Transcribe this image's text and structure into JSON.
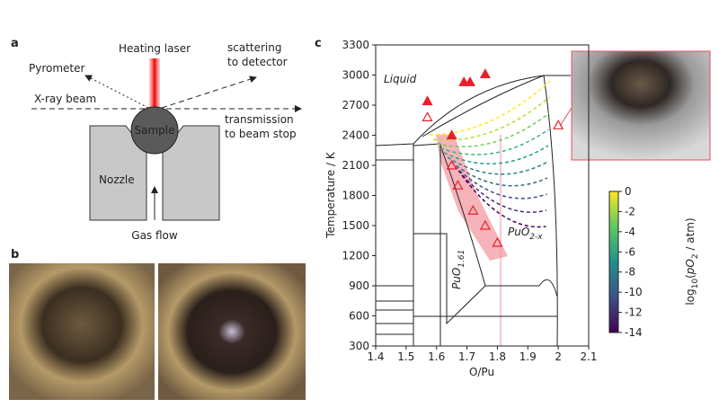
{
  "panel_a": {
    "label": "a",
    "heating_laser": "Heating laser",
    "pyrometer": "Pyrometer",
    "scattering": [
      "scattering",
      "to detector"
    ],
    "xray": "X-ray beam",
    "transmission": [
      "transmission",
      "to beam stop"
    ],
    "sample": "Sample",
    "nozzle": "Nozzle",
    "gas_flow": "Gas flow"
  },
  "panel_b": {
    "label": "b"
  },
  "panel_c": {
    "label": "c"
  },
  "chart_data": {
    "type": "scatter",
    "xlabel": "O/Pu",
    "ylabel": "Temperature / K",
    "xlim": [
      1.4,
      2.1
    ],
    "xticks": [
      1.4,
      1.5,
      1.6,
      1.7,
      1.8,
      1.9,
      2.0,
      2.1
    ],
    "ylim": [
      300,
      3300
    ],
    "yticks": [
      300,
      600,
      900,
      1200,
      1500,
      1800,
      2100,
      2400,
      2700,
      3000,
      3300
    ],
    "series": [
      {
        "color": "#e8202a",
        "marker": "filled",
        "x": [
          1.57,
          1.69,
          1.71,
          1.76,
          1.65
        ],
        "values": [
          2740,
          2930,
          2930,
          3010,
          2400
        ]
      },
      {
        "color": "#e8202a",
        "marker": "open",
        "x": [
          1.57,
          1.65,
          1.67,
          1.72,
          1.76,
          1.8,
          2.0
        ],
        "values": [
          2580,
          2100,
          1900,
          1650,
          1500,
          1330,
          2500
        ]
      }
    ],
    "annotations": {
      "liquid": "Liquid",
      "puo2x": {
        "base": "PuO",
        "sub": "2-x"
      },
      "puo161": {
        "base": "PuO",
        "sub": "1.61"
      }
    },
    "colorbar": {
      "lim": [
        -14,
        0
      ],
      "ticks": [
        0,
        -2,
        -4,
        -6,
        -8,
        -10,
        -12,
        -14
      ],
      "label": {
        "pre": "log",
        "sub1": "10",
        "mid": "(",
        "it": "pO",
        "sub2": "2",
        "post": " / atm)"
      }
    }
  }
}
